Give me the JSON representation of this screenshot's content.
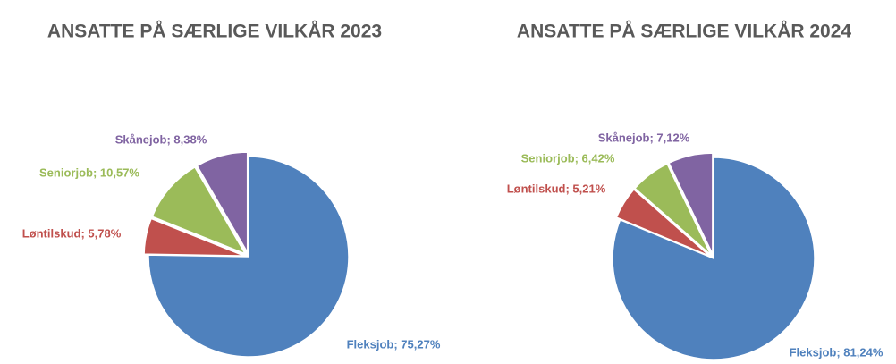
{
  "chart_data": [
    {
      "type": "pie",
      "title": "ANSATTE PÅ SÆRLIGE VILKÅR 2023",
      "values": [
        75.27,
        5.78,
        10.57,
        8.38
      ],
      "value_labels": [
        "Fleksjob; 75,27%",
        "Løntilskud; 5,78%",
        "Seniorjob; 10,57%",
        "Skånejob; 8,38%"
      ],
      "colors": [
        "#4f81bd",
        "#c0504d",
        "#9bbb59",
        "#8064a2"
      ]
    },
    {
      "type": "pie",
      "title": "ANSATTE PÅ SÆRLIGE VILKÅR 2024",
      "values": [
        81.24,
        5.21,
        6.42,
        7.12
      ],
      "value_labels": [
        "Fleksjob; 81,24%",
        "Løntilskud; 5,21%",
        "Seniorjob; 6,42%",
        "Skånejob; 7,12%"
      ],
      "colors": [
        "#4f81bd",
        "#c0504d",
        "#9bbb59",
        "#8064a2"
      ]
    }
  ]
}
